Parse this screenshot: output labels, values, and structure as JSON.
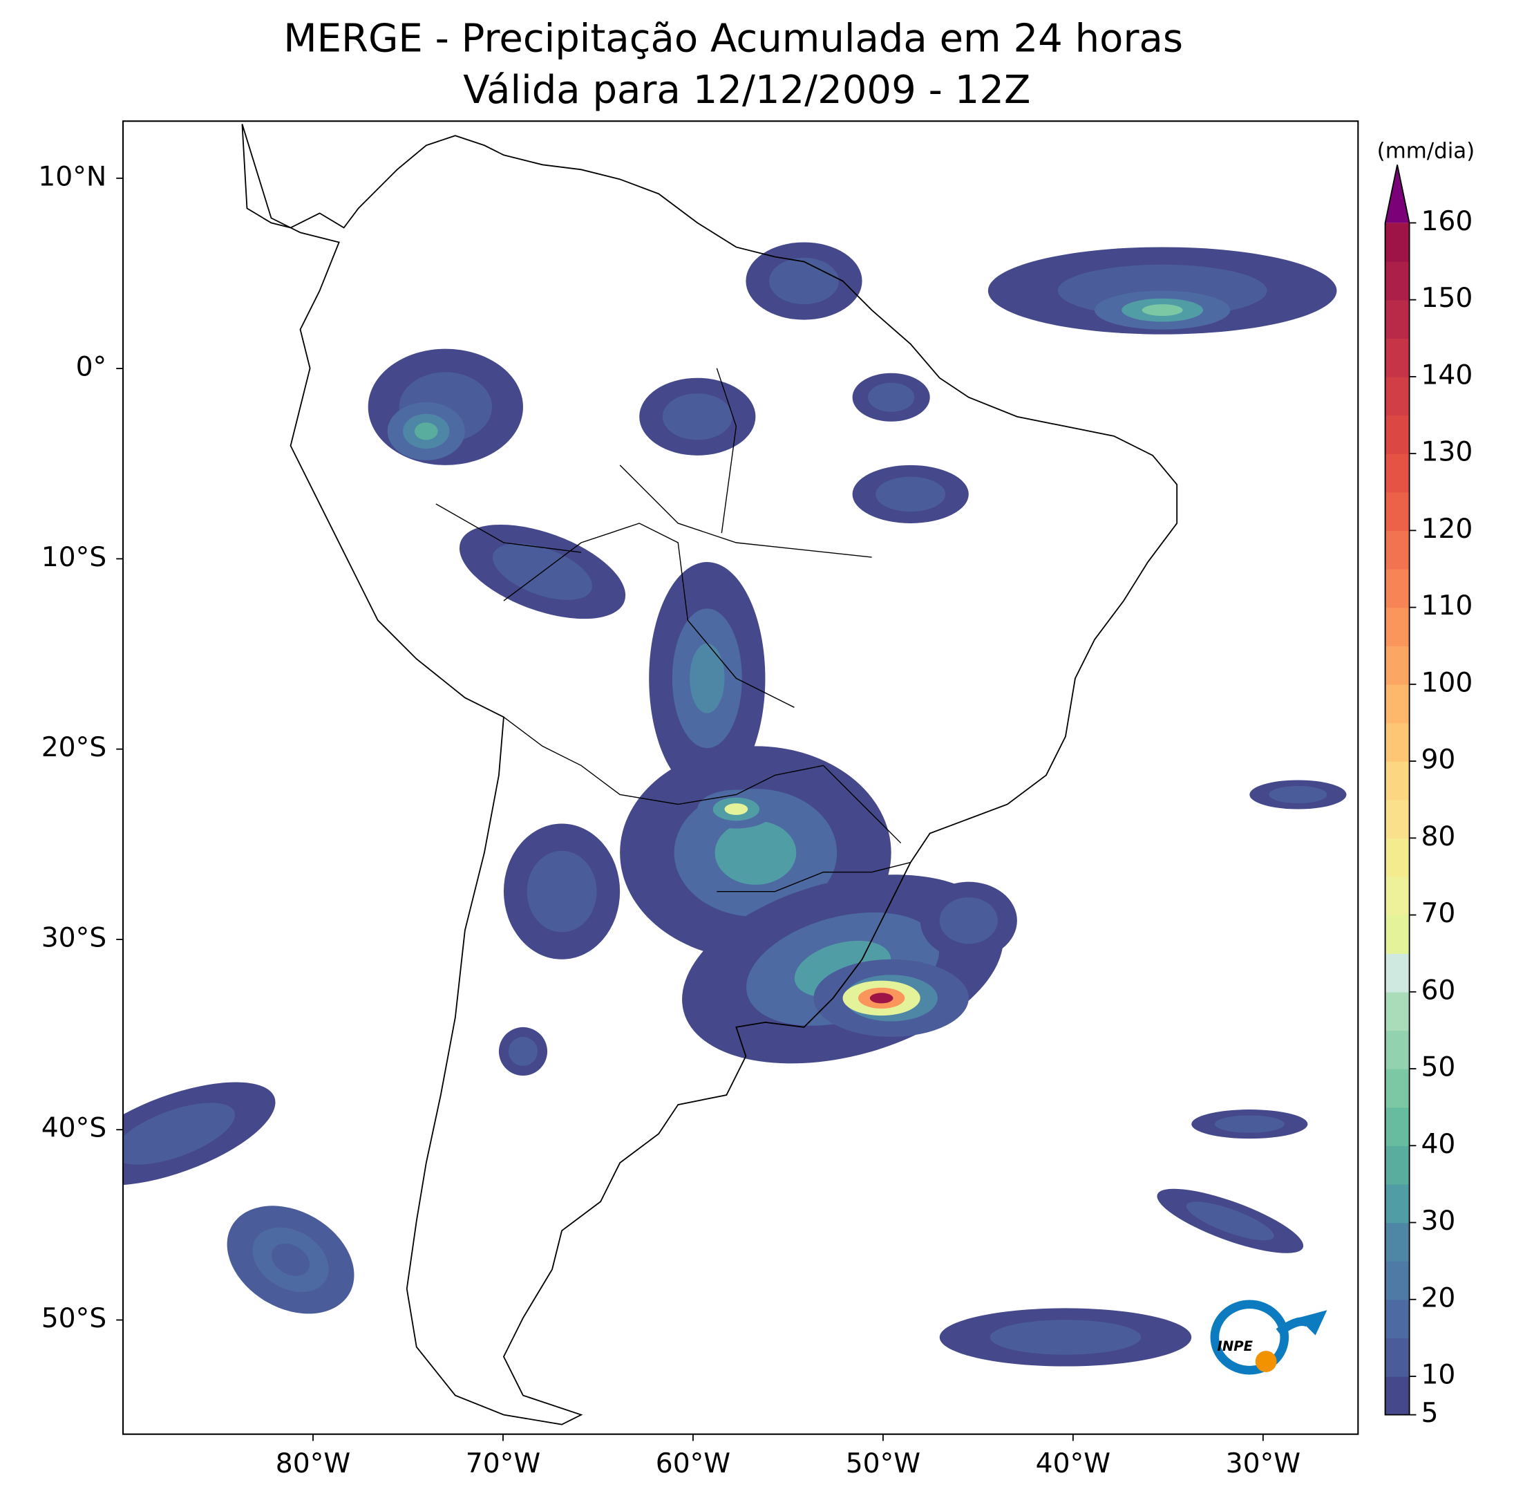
{
  "title": [
    "MERGE - Precipitação Acumulada em 24 horas",
    "Válida para 12/12/2009 - 12Z"
  ],
  "map": {
    "lat_range": [
      -56,
      13
    ],
    "lon_range": [
      -90,
      -25
    ],
    "lat_ticks": [
      {
        "value": 10,
        "label": "10°N"
      },
      {
        "value": 0,
        "label": "0°"
      },
      {
        "value": -10,
        "label": "10°S"
      },
      {
        "value": -20,
        "label": "20°S"
      },
      {
        "value": -30,
        "label": "30°S"
      },
      {
        "value": -40,
        "label": "40°S"
      },
      {
        "value": -50,
        "label": "50°S"
      }
    ],
    "lon_ticks": [
      {
        "value": -80,
        "label": "80°W"
      },
      {
        "value": -70,
        "label": "70°W"
      },
      {
        "value": -60,
        "label": "60°W"
      },
      {
        "value": -50,
        "label": "50°W"
      },
      {
        "value": -40,
        "label": "40°W"
      },
      {
        "value": -30,
        "label": "30°W"
      }
    ],
    "logo_text": "INPE"
  },
  "colorbar": {
    "label": "(mm/dia)",
    "range": [
      5,
      160
    ],
    "ticks": [
      5,
      10,
      20,
      30,
      40,
      50,
      60,
      70,
      80,
      90,
      100,
      110,
      120,
      130,
      140,
      150,
      160
    ],
    "levels": [
      5,
      10,
      15,
      20,
      25,
      30,
      35,
      40,
      45,
      50,
      55,
      60,
      65,
      70,
      75,
      80,
      85,
      90,
      95,
      100,
      105,
      110,
      115,
      120,
      125,
      130,
      135,
      140,
      145,
      150,
      155,
      160
    ],
    "colors": [
      "#45498c",
      "#4a5c9a",
      "#4d6aa2",
      "#4f7aa6",
      "#4e86a6",
      "#519da5",
      "#58ad9f",
      "#67bb9e",
      "#7cc8a4",
      "#93d2ae",
      "#aadcba",
      "#cfe9e0",
      "#e4f29a",
      "#eef09a",
      "#f4ea8e",
      "#fae08a",
      "#fdd681",
      "#fdc675",
      "#fdb86c",
      "#fca663",
      "#fa955b",
      "#f78454",
      "#f2734f",
      "#ec6249",
      "#e55345",
      "#db4843",
      "#d13e45",
      "#c53447",
      "#b82a48",
      "#ab1f48",
      "#9e1447"
    ],
    "over_color": "#7a0177",
    "extend": "max"
  }
}
